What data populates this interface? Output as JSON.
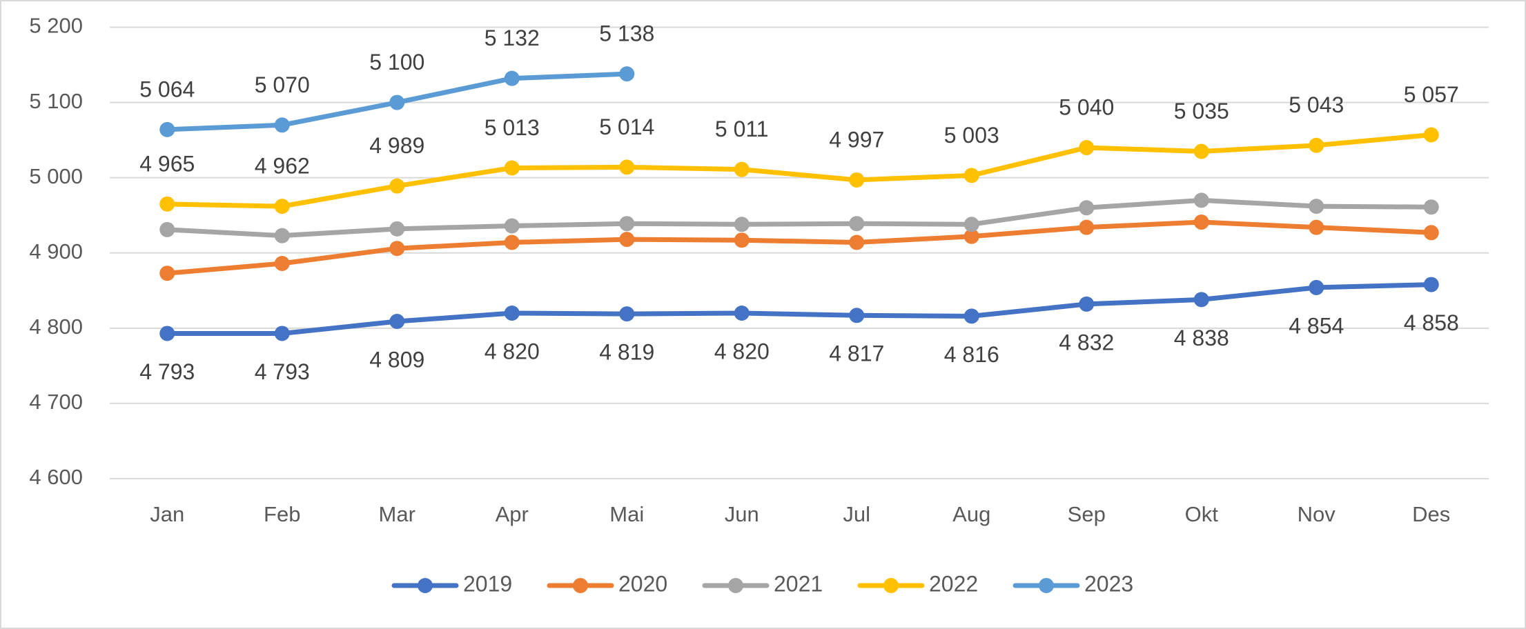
{
  "chart_data": {
    "type": "line",
    "categories": [
      "Jan",
      "Feb",
      "Mar",
      "Apr",
      "Mai",
      "Jun",
      "Jul",
      "Aug",
      "Sep",
      "Okt",
      "Nov",
      "Des"
    ],
    "series": [
      {
        "name": "2019",
        "color": "#4472c4",
        "values": [
          4793,
          4793,
          4809,
          4820,
          4819,
          4820,
          4817,
          4816,
          4832,
          4838,
          4854,
          4858
        ],
        "value_labels": [
          "4 793",
          "4 793",
          "4 809",
          "4 820",
          "4 819",
          "4 820",
          "4 817",
          "4 816",
          "4 832",
          "4 838",
          "4 854",
          "4 858"
        ]
      },
      {
        "name": "2020",
        "color": "#ed7d31",
        "values": [
          4873,
          4886,
          4906,
          4914,
          4918,
          4917,
          4914,
          4922,
          4934,
          4941,
          4934,
          4927
        ]
      },
      {
        "name": "2021",
        "color": "#a5a5a5",
        "values": [
          4931,
          4923,
          4932,
          4936,
          4939,
          4938,
          4939,
          4938,
          4960,
          4970,
          4962,
          4961
        ]
      },
      {
        "name": "2022",
        "color": "#ffc000",
        "values": [
          4965,
          4962,
          4989,
          5013,
          5014,
          5011,
          4997,
          5003,
          5040,
          5035,
          5043,
          5057
        ],
        "value_labels": [
          "4 965",
          "4 962",
          "4 989",
          "5 013",
          "5 014",
          "5 011",
          "4 997",
          "5 003",
          "5 040",
          "5 035",
          "5 043",
          "5 057"
        ]
      },
      {
        "name": "2023",
        "color": "#5b9bd5",
        "values": [
          5064,
          5070,
          5100,
          5132,
          5138,
          null,
          null,
          null,
          null,
          null,
          null,
          null
        ],
        "value_labels": [
          "5 064",
          "5 070",
          "5 100",
          "5 132",
          "5 138",
          null,
          null,
          null,
          null,
          null,
          null,
          null
        ]
      }
    ],
    "ylim": [
      4600,
      5200
    ],
    "yticks": [
      {
        "value": 4600,
        "label": "4 600"
      },
      {
        "value": 4700,
        "label": "4 700"
      },
      {
        "value": 4800,
        "label": "4 800"
      },
      {
        "value": 4900,
        "label": "4 900"
      },
      {
        "value": 5000,
        "label": "5 000"
      },
      {
        "value": 5100,
        "label": "5 100"
      },
      {
        "value": 5200,
        "label": "5 200"
      }
    ],
    "grid": true,
    "legend": "bottom"
  }
}
